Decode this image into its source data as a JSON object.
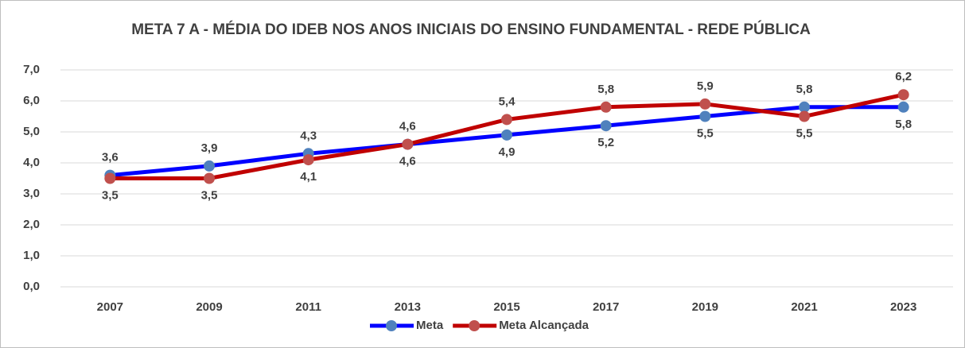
{
  "chart_data": {
    "type": "line",
    "title": "META 7 A - MÉDIA DO IDEB NOS ANOS INICIAIS DO ENSINO FUNDAMENTAL - REDE PÚBLICA",
    "categories": [
      "2007",
      "2009",
      "2011",
      "2013",
      "2015",
      "2017",
      "2019",
      "2021",
      "2023"
    ],
    "series": [
      {
        "name": "Meta",
        "color": "#0000ff",
        "marker_color": "#4f81bd",
        "values": [
          3.6,
          3.9,
          4.3,
          4.6,
          4.9,
          5.2,
          5.5,
          5.8,
          5.8
        ],
        "value_labels": [
          "3,6",
          "3,9",
          "4,3",
          "4,6",
          "4,9",
          "5,2",
          "5,5",
          "5,8",
          "5,8"
        ]
      },
      {
        "name": "Meta Alcançada",
        "color": "#c00000",
        "marker_color": "#c0504d",
        "values": [
          3.5,
          3.5,
          4.1,
          4.6,
          5.4,
          5.8,
          5.9,
          5.5,
          6.2
        ],
        "value_labels": [
          "3,5",
          "3,5",
          "4,1",
          "4,6",
          "5,4",
          "5,8",
          "5,9",
          "5,5",
          "6,2"
        ]
      }
    ],
    "ylim": [
      0,
      7
    ],
    "yticks": [
      {
        "value": 0,
        "label": "0,0"
      },
      {
        "value": 1,
        "label": "1,0"
      },
      {
        "value": 2,
        "label": "2,0"
      },
      {
        "value": 3,
        "label": "3,0"
      },
      {
        "value": 4,
        "label": "4,0"
      },
      {
        "value": 5,
        "label": "5,0"
      },
      {
        "value": 6,
        "label": "6,0"
      },
      {
        "value": 7,
        "label": "7,0"
      }
    ],
    "grid": true,
    "legend": "bottom"
  }
}
